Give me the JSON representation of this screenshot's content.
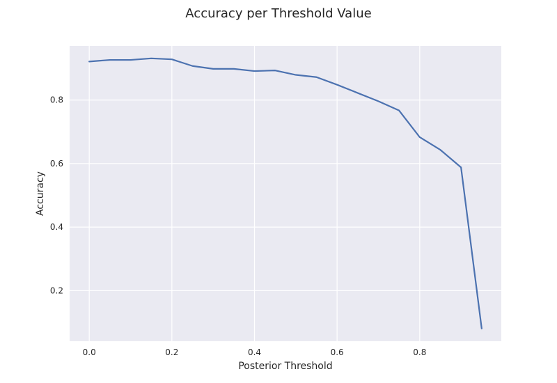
{
  "chart_data": {
    "type": "line",
    "title": "Accuracy per Threshold Value",
    "xlabel": "Posterior Threshold",
    "ylabel": "Accuracy",
    "xlim": [
      -0.0475,
      0.9975
    ],
    "ylim": [
      0.041,
      0.97
    ],
    "x_ticks": [
      0.0,
      0.2,
      0.4,
      0.6,
      0.8
    ],
    "x_tick_labels": [
      "0.0",
      "0.2",
      "0.4",
      "0.6",
      "0.8"
    ],
    "y_ticks": [
      0.2,
      0.4,
      0.6,
      0.8
    ],
    "y_tick_labels": [
      "0.2",
      "0.4",
      "0.6",
      "0.8"
    ],
    "grid": true,
    "background": "#eaeaf2",
    "line_color": "#4c72b0",
    "series": [
      {
        "x": [
          0.0,
          0.05,
          0.1,
          0.15,
          0.2,
          0.25,
          0.3,
          0.35,
          0.4,
          0.45,
          0.5,
          0.55,
          0.6,
          0.65,
          0.7,
          0.75,
          0.8,
          0.85,
          0.9,
          0.95
        ],
        "y": [
          0.921,
          0.926,
          0.926,
          0.931,
          0.928,
          0.907,
          0.898,
          0.898,
          0.891,
          0.893,
          0.879,
          0.872,
          0.848,
          0.822,
          0.796,
          0.767,
          0.683,
          0.643,
          0.588,
          0.081
        ]
      }
    ]
  }
}
